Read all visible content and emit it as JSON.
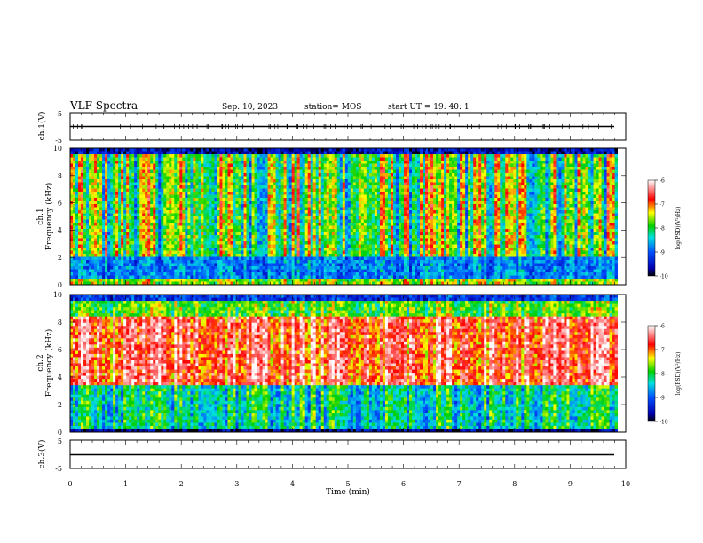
{
  "header": {
    "title": "VLF Spectra",
    "date": "Sep. 10, 2023",
    "station": "station= MOS",
    "start_ut": "start  UT =   19: 40: 1"
  },
  "chart_data": [
    {
      "type": "line",
      "name": "ch1-voltage",
      "ylabel": "ch.1(V)",
      "yticks": [
        "5",
        "-5"
      ],
      "ylim": [
        -5,
        5
      ],
      "xlim": [
        0,
        10
      ],
      "baseline": 0,
      "line_color": "#000000"
    },
    {
      "type": "heatmap",
      "name": "ch1-spectrogram",
      "ylabel_1": "ch.1",
      "ylabel_2": "Frequency (kHz)",
      "yticks": [
        "0",
        "2",
        "4",
        "6",
        "8",
        "10"
      ],
      "ylim": [
        0,
        10
      ],
      "xlim": [
        0,
        9.85
      ],
      "colorbar": {
        "label": "log(PSD)(V²/Hz)",
        "ticks": [
          "-6",
          "-7",
          "-8",
          "-9",
          "-10"
        ],
        "range": [
          -10,
          -6
        ]
      },
      "dominant_band_khz": [
        2,
        9.5
      ]
    },
    {
      "type": "heatmap",
      "name": "ch2-spectrogram",
      "ylabel_1": "ch.2",
      "ylabel_2": "Frequency (kHz)",
      "yticks": [
        "0",
        "2",
        "4",
        "6",
        "8",
        "10"
      ],
      "ylim": [
        0,
        10
      ],
      "xlim": [
        0,
        9.85
      ],
      "colorbar": {
        "label": "log(PSD)(V²/Hz)",
        "ticks": [
          "-6",
          "-7",
          "-8",
          "-9",
          "-10"
        ],
        "range": [
          -10,
          -6
        ]
      },
      "dominant_band_khz": [
        3.5,
        8.5
      ]
    },
    {
      "type": "line",
      "name": "ch3-voltage",
      "ylabel": "ch.3(V)",
      "yticks": [
        "5",
        "-5"
      ],
      "ylim": [
        -5,
        5
      ],
      "xlim": [
        0,
        10
      ],
      "baseline": 0,
      "line_color": "#000000"
    }
  ],
  "x_axis": {
    "label": "Time  (min)",
    "ticks": [
      "0",
      "1",
      "2",
      "3",
      "4",
      "5",
      "6",
      "7",
      "8",
      "9",
      "10"
    ],
    "range": [
      0,
      10
    ]
  }
}
